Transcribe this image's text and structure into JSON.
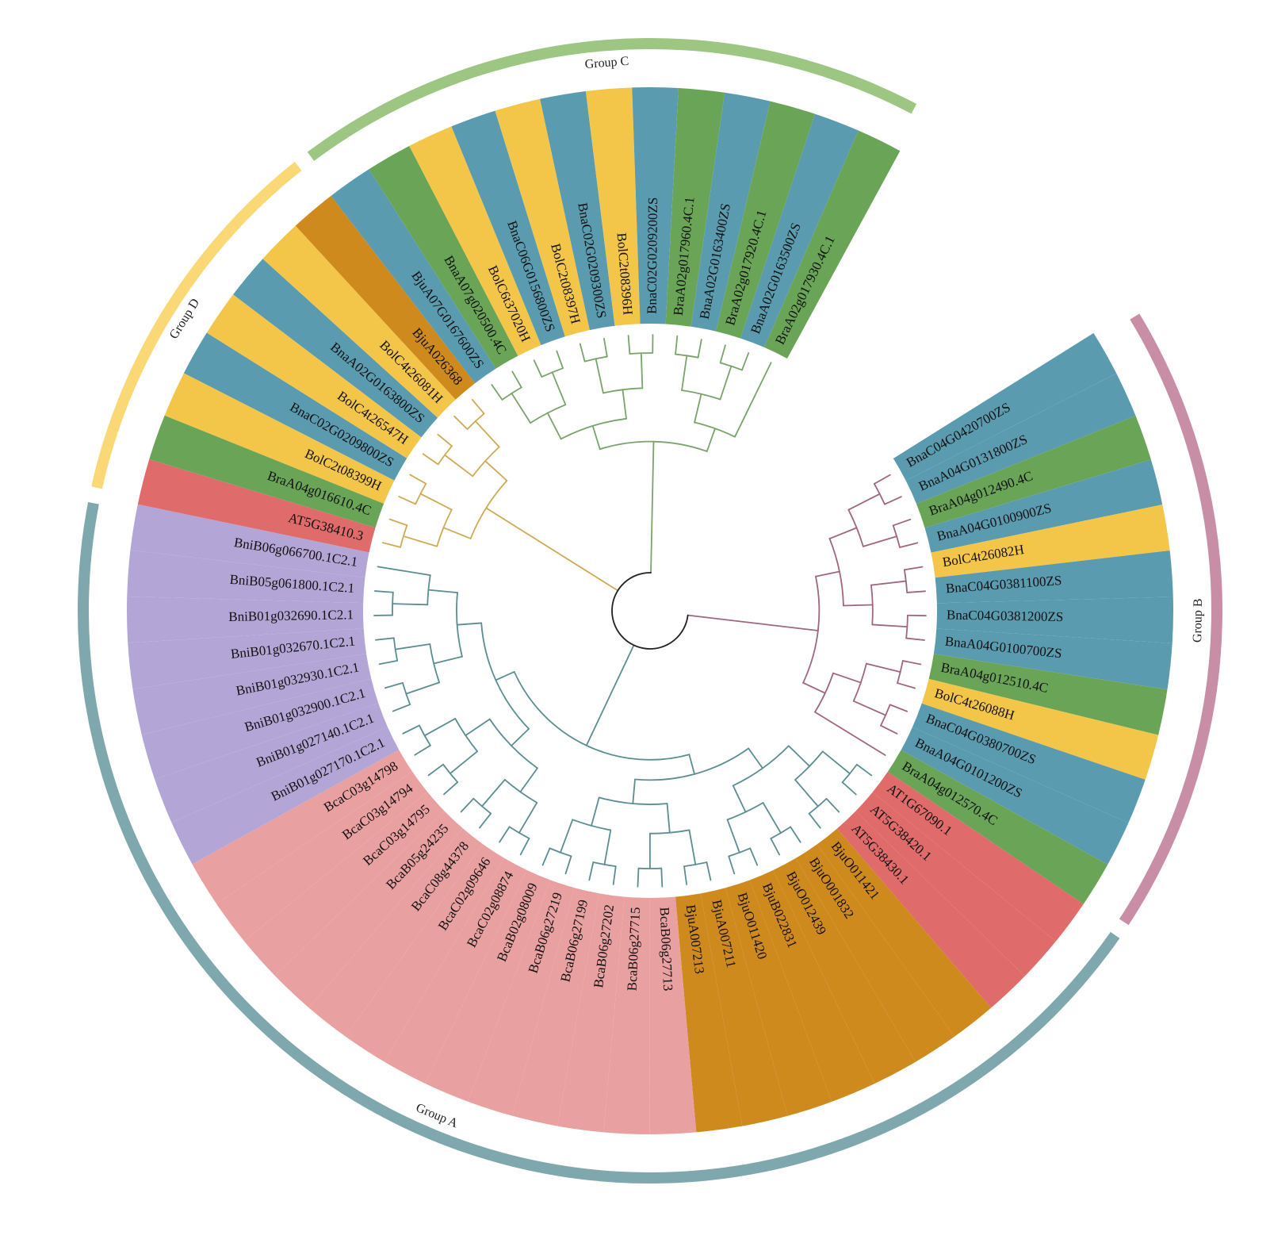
{
  "figure": {
    "type": "circular phylogenetic tree",
    "groups": [
      {
        "label": "Group A",
        "color": "#7ea8ad"
      },
      {
        "label": "Group B",
        "color": "#c88ea6"
      },
      {
        "label": "Group C",
        "color": "#9cc681"
      },
      {
        "label": "Group D",
        "color": "#f9d875"
      }
    ],
    "species_colors": {
      "AT": "#e06b6b",
      "Bra": "#6aa457",
      "Bol": "#f3c64a",
      "Bna": "#5b9bb0",
      "Bju": "#cf8a1e",
      "Bca": "#e9a0a0",
      "Bni": "#b3a6d6"
    },
    "branch_colors": {
      "Group A": "#5b8e90",
      "Group B": "#a1667f",
      "Group C": "#79a46a",
      "Group D": "#cfaa52"
    },
    "leaves": [
      {
        "label": "BnaC04G0420700ZS",
        "species": "Bna",
        "group": "Group B"
      },
      {
        "label": "BnaA04G0131800ZS",
        "species": "Bna",
        "group": "Group B"
      },
      {
        "label": "BraA04g012490.4C",
        "species": "Bra",
        "group": "Group B"
      },
      {
        "label": "BnaA04G0100900ZS",
        "species": "Bna",
        "group": "Group B"
      },
      {
        "label": "BolC4t26082H",
        "species": "Bol",
        "group": "Group B"
      },
      {
        "label": "BnaC04G0381100ZS",
        "species": "Bna",
        "group": "Group B"
      },
      {
        "label": "BnaC04G0381200ZS",
        "species": "Bna",
        "group": "Group B"
      },
      {
        "label": "BnaA04G0100700ZS",
        "species": "Bna",
        "group": "Group B"
      },
      {
        "label": "BraA04g012510.4C",
        "species": "Bra",
        "group": "Group B"
      },
      {
        "label": "BolC4t26088H",
        "species": "Bol",
        "group": "Group B"
      },
      {
        "label": "BnaC04G0380700ZS",
        "species": "Bna",
        "group": "Group B"
      },
      {
        "label": "BnaA04G0101200ZS",
        "species": "Bna",
        "group": "Group B"
      },
      {
        "label": "BraA04g012570.4C",
        "species": "Bra",
        "group": "Group B"
      },
      {
        "label": "AT1G67090.1",
        "species": "AT",
        "group": "Group A"
      },
      {
        "label": "AT5G38420.1",
        "species": "AT",
        "group": "Group A"
      },
      {
        "label": "AT5G38430.1",
        "species": "AT",
        "group": "Group A"
      },
      {
        "label": "BjuO011421",
        "species": "Bju",
        "group": "Group A"
      },
      {
        "label": "BjuO001832",
        "species": "Bju",
        "group": "Group A"
      },
      {
        "label": "BjuO012439",
        "species": "Bju",
        "group": "Group A"
      },
      {
        "label": "BjuB022831",
        "species": "Bju",
        "group": "Group A"
      },
      {
        "label": "BjuO011420",
        "species": "Bju",
        "group": "Group A"
      },
      {
        "label": "BjuA007211",
        "species": "Bju",
        "group": "Group A"
      },
      {
        "label": "BjuA007213",
        "species": "Bju",
        "group": "Group A"
      },
      {
        "label": "BcaB06g27713",
        "species": "Bca",
        "group": "Group A"
      },
      {
        "label": "BcaB06g27715",
        "species": "Bca",
        "group": "Group A"
      },
      {
        "label": "BcaB06g27202",
        "species": "Bca",
        "group": "Group A"
      },
      {
        "label": "BcaB06g27199",
        "species": "Bca",
        "group": "Group A"
      },
      {
        "label": "BcaB06g27219",
        "species": "Bca",
        "group": "Group A"
      },
      {
        "label": "BcaB02g08009",
        "species": "Bca",
        "group": "Group A"
      },
      {
        "label": "BcaC02g08874",
        "species": "Bca",
        "group": "Group A"
      },
      {
        "label": "BcaC02g09646",
        "species": "Bca",
        "group": "Group A"
      },
      {
        "label": "BcaC08g44378",
        "species": "Bca",
        "group": "Group A"
      },
      {
        "label": "BcaB05g24235",
        "species": "Bca",
        "group": "Group A"
      },
      {
        "label": "BcaC03g14795",
        "species": "Bca",
        "group": "Group A"
      },
      {
        "label": "BcaC03g14794",
        "species": "Bca",
        "group": "Group A"
      },
      {
        "label": "BcaC03g14798",
        "species": "Bca",
        "group": "Group A"
      },
      {
        "label": "BniB01g027170.1C2.1",
        "species": "Bni",
        "group": "Group A"
      },
      {
        "label": "BniB01g027140.1C2.1",
        "species": "Bni",
        "group": "Group A"
      },
      {
        "label": "BniB01g032900.1C2.1",
        "species": "Bni",
        "group": "Group A"
      },
      {
        "label": "BniB01g032930.1C2.1",
        "species": "Bni",
        "group": "Group A"
      },
      {
        "label": "BniB01g032670.1C2.1",
        "species": "Bni",
        "group": "Group A"
      },
      {
        "label": "BniB01g032690.1C2.1",
        "species": "Bni",
        "group": "Group A"
      },
      {
        "label": "BniB05g061800.1C2.1",
        "species": "Bni",
        "group": "Group A"
      },
      {
        "label": "BniB06g066700.1C2.1",
        "species": "Bni",
        "group": "Group A"
      },
      {
        "label": "AT5G38410.3",
        "species": "AT",
        "group": "Group D"
      },
      {
        "label": "BraA04g016610.4C",
        "species": "Bra",
        "group": "Group D"
      },
      {
        "label": "BolC2t08399H",
        "species": "Bol",
        "group": "Group D"
      },
      {
        "label": "BnaC02G0209800ZS",
        "species": "Bna",
        "group": "Group D"
      },
      {
        "label": "BolC4t26547H",
        "species": "Bol",
        "group": "Group D"
      },
      {
        "label": "BnaA02G0163800ZS",
        "species": "Bna",
        "group": "Group D"
      },
      {
        "label": "BolC4t26081H",
        "species": "Bol",
        "group": "Group D"
      },
      {
        "label": "BjuA026368",
        "species": "Bju",
        "group": "Group D"
      },
      {
        "label": "BjuA07G0167600ZS",
        "species": "Bna",
        "group": "Group C"
      },
      {
        "label": "BnaA07g020500.4C",
        "species": "Bra",
        "group": "Group C"
      },
      {
        "label": "BolC6t37020H",
        "species": "Bol",
        "group": "Group C"
      },
      {
        "label": "BnaC06G0156800ZS",
        "species": "Bna",
        "group": "Group C"
      },
      {
        "label": "BolC2t08397H",
        "species": "Bol",
        "group": "Group C"
      },
      {
        "label": "BnaC02G0209300ZS",
        "species": "Bna",
        "group": "Group C"
      },
      {
        "label": "BolC2t08396H",
        "species": "Bol",
        "group": "Group C"
      },
      {
        "label": "BnaC02G0209200ZS",
        "species": "Bna",
        "group": "Group C"
      },
      {
        "label": "BraA02g017960.4C.1",
        "species": "Bra",
        "group": "Group C"
      },
      {
        "label": "BnaA02G0163400ZS",
        "species": "Bna",
        "group": "Group C"
      },
      {
        "label": "BraA02g017920.4C.1",
        "species": "Bra",
        "group": "Group C"
      },
      {
        "label": "BnaA02G0163500ZS",
        "species": "Bna",
        "group": "Group C"
      },
      {
        "label": "BraA02g017930.4C.1",
        "species": "Bra",
        "group": "Group C"
      }
    ]
  }
}
